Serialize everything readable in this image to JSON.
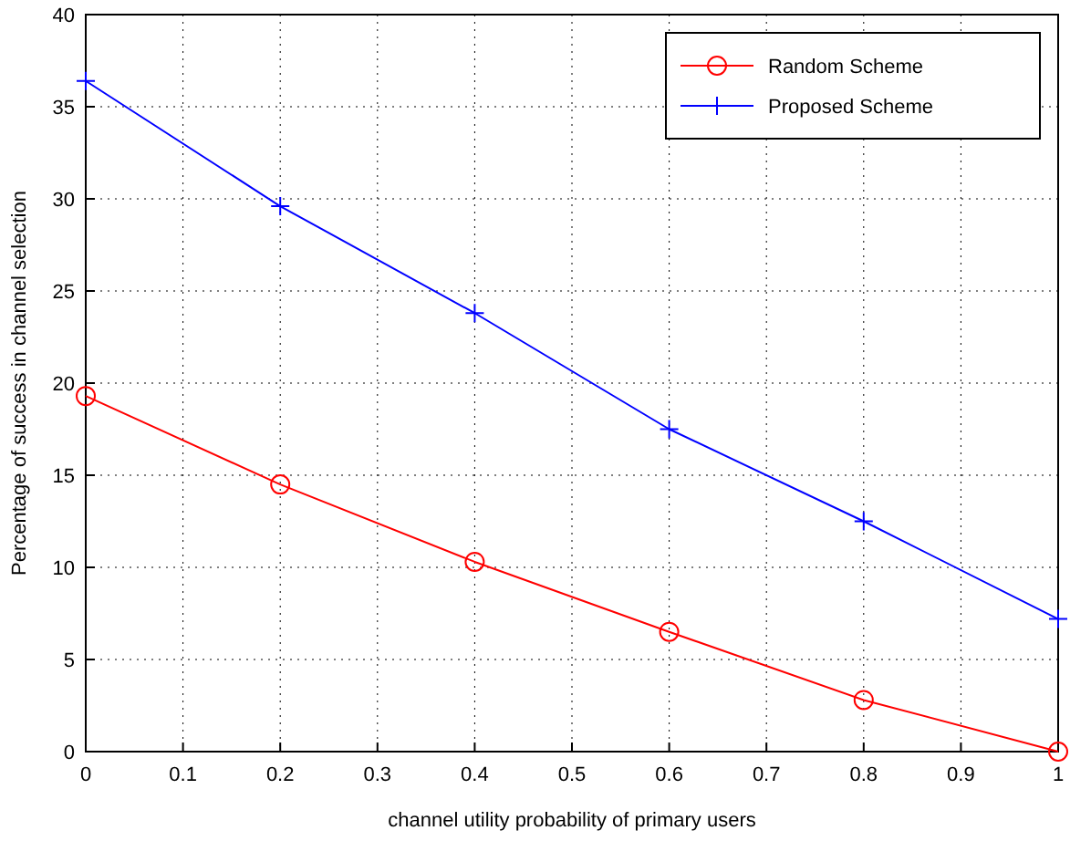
{
  "chart_data": {
    "type": "line",
    "xlabel": "channel utility probability of primary users",
    "ylabel": "Percentage of success in channel selection",
    "x": [
      0,
      0.2,
      0.4,
      0.6,
      0.8,
      1
    ],
    "series": [
      {
        "name": "Random Scheme",
        "color": "#ff0000",
        "marker": "circle",
        "values": [
          19.3,
          14.5,
          10.3,
          6.5,
          2.8,
          0
        ]
      },
      {
        "name": "Proposed Scheme",
        "color": "#0000ff",
        "marker": "cross",
        "values": [
          36.4,
          29.6,
          23.8,
          17.5,
          12.5,
          7.2
        ]
      }
    ],
    "xlim": [
      0,
      1
    ],
    "xticks": [
      0,
      0.1,
      0.2,
      0.3,
      0.4,
      0.5,
      0.6,
      0.7,
      0.8,
      0.9,
      1
    ],
    "ylim": [
      0,
      40
    ],
    "yticks": [
      0,
      5,
      10,
      15,
      20,
      25,
      30,
      35,
      40
    ],
    "grid": true,
    "legend": "top right",
    "line_style": "solid"
  }
}
